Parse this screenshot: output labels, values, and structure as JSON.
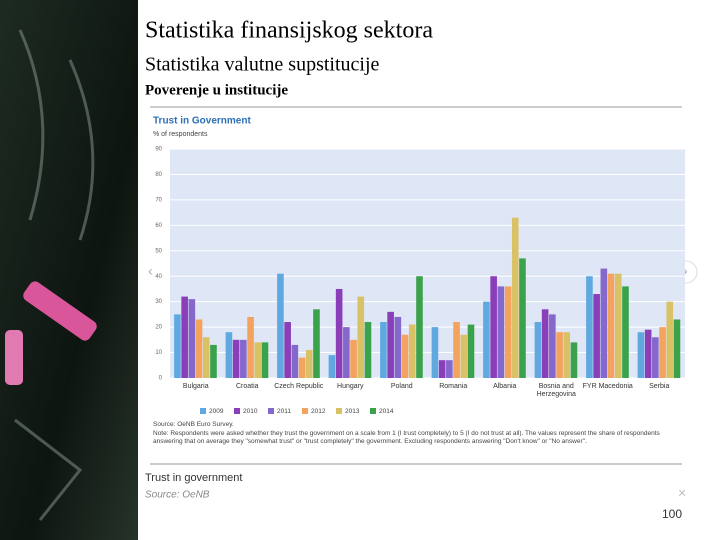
{
  "slide": {
    "title": "Statistika finansijskog sektora",
    "subtitle": "Statistika valutne supstitucije",
    "heading": "Poverenje u institucije",
    "caption": "Trust in government",
    "caption_source": "Source: OeNB",
    "page_number": "100"
  },
  "chart_data": {
    "type": "bar",
    "title": "Trust in Government",
    "subtitle": "% of respondents",
    "categories": [
      "Bulgaria",
      "Croatia",
      "Czech Republic",
      "Hungary",
      "Poland",
      "Romania",
      "Albania",
      "Bosnia and Herzegovina",
      "FYR Macedonia",
      "Serbia"
    ],
    "series": [
      {
        "name": "2009",
        "color": "#5fa8e0",
        "values": [
          25,
          18,
          41,
          9,
          22,
          20,
          30,
          22,
          40,
          18
        ]
      },
      {
        "name": "2010",
        "color": "#8a3fb8",
        "values": [
          32,
          15,
          22,
          35,
          26,
          7,
          40,
          27,
          33,
          19
        ]
      },
      {
        "name": "2011",
        "color": "#8468cc",
        "values": [
          31,
          15,
          13,
          20,
          24,
          7,
          36,
          25,
          43,
          16
        ]
      },
      {
        "name": "2012",
        "color": "#f4a35f",
        "values": [
          23,
          24,
          8,
          15,
          17,
          22,
          36,
          18,
          41,
          20
        ]
      },
      {
        "name": "2013",
        "color": "#d9c266",
        "values": [
          16,
          14,
          11,
          32,
          21,
          17,
          63,
          18,
          41,
          30
        ]
      },
      {
        "name": "2014",
        "color": "#3ba24c",
        "values": [
          13,
          14,
          27,
          22,
          40,
          21,
          47,
          14,
          36,
          23
        ]
      }
    ],
    "ylim": [
      0,
      90
    ],
    "yticks": [
      0,
      10,
      20,
      30,
      40,
      50,
      60,
      70,
      80,
      90
    ],
    "grid": true,
    "source": "Source: OeNB Euro Survey.",
    "note": "Note: Respondents were asked whether they trust the government on a scale from 1 (I trust completely) to 5 (I do not trust at all). The values represent the share of respondents answering that on average they \"somewhat trust\" or \"trust completely\" the government. Excluding respondents answering \"Don't know\" or \"No answer\"."
  }
}
